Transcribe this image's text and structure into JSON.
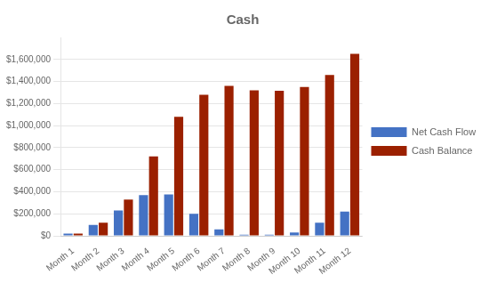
{
  "chart_data": {
    "type": "bar",
    "title": "Cash",
    "categories": [
      "Month 1",
      "Month 2",
      "Month 3",
      "Month 4",
      "Month 5",
      "Month 6",
      "Month 7",
      "Month 8",
      "Month 9",
      "Month 10",
      "Month 11",
      "Month 12"
    ],
    "series": [
      {
        "name": "Net Cash Flow",
        "color": "#4472C4",
        "values": [
          20000,
          100000,
          230000,
          370000,
          375000,
          200000,
          60000,
          10000,
          10000,
          30000,
          120000,
          220000
        ]
      },
      {
        "name": "Cash Balance",
        "color": "#9B2000",
        "values": [
          20000,
          120000,
          330000,
          720000,
          1080000,
          1280000,
          1360000,
          1320000,
          1315000,
          1350000,
          1460000,
          1650000
        ]
      }
    ],
    "ylim": [
      0,
      1800000
    ],
    "yticks": [
      {
        "value": 0,
        "label": "$0"
      },
      {
        "value": 200000,
        "label": "$200,000"
      },
      {
        "value": 400000,
        "label": "$400,000"
      },
      {
        "value": 600000,
        "label": "$600,000"
      },
      {
        "value": 800000,
        "label": "$800,000"
      },
      {
        "value": 1000000,
        "label": "$1,000,000"
      },
      {
        "value": 1200000,
        "label": "$1,200,000"
      },
      {
        "value": 1400000,
        "label": "$1,400,000"
      },
      {
        "value": 1600000,
        "label": "$1,600,000"
      }
    ],
    "grid": true,
    "legend": "right"
  }
}
